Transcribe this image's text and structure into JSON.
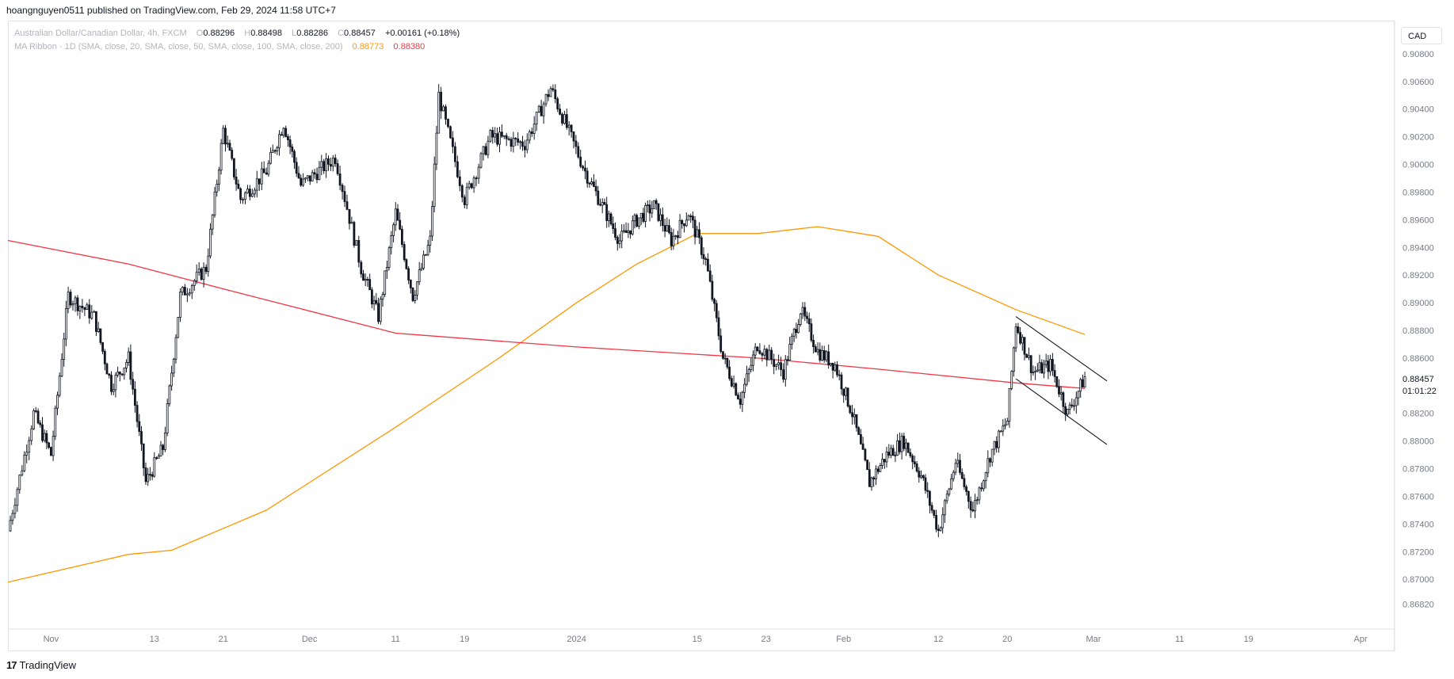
{
  "header": {
    "published_line": "hoangnguyen0511 published on TradingView.com, Feb 29, 2024 11:58 UTC+7"
  },
  "legend": {
    "symbol_line": "Australian Dollar/Canadian Dollar, 4h, FXCM",
    "o_label": "O",
    "o_value": "0.88296",
    "h_label": "H",
    "h_value": "0.88498",
    "l_label": "L",
    "l_value": "0.88286",
    "c_label": "C",
    "c_value": "0.88457",
    "change": "+0.00161 (+0.18%)",
    "ma_line": "MA Ribbon · 1D (SMA, close, 20, SMA, close, 50, SMA, close, 100, SMA, close, 200)",
    "ma_value_1": "0.88773",
    "ma_value_2": "0.88380"
  },
  "currency_button": "CAD",
  "last_price": {
    "value": "0.88457",
    "countdown": "01:01:22"
  },
  "footer": {
    "brand": "TradingView",
    "logo_glyph": "17"
  },
  "colors": {
    "candle": "#131722",
    "ma_orange": "#ff9800",
    "ma_red": "#f23645",
    "grid_border": "#e0e3eb"
  },
  "chart_data": {
    "type": "candlestick",
    "symbol": "Australian Dollar/Canadian Dollar",
    "interval": "4h",
    "ylim": [
      0.8664,
      0.9104
    ],
    "y_ticks": [
      "0.90800",
      "0.90600",
      "0.90400",
      "0.90200",
      "0.90000",
      "0.89800",
      "0.89600",
      "0.89400",
      "0.89200",
      "0.89000",
      "0.88800",
      "0.88600",
      "0.88200",
      "0.88000",
      "0.87800",
      "0.87600",
      "0.87400",
      "0.87200",
      "0.87000",
      "0.86820"
    ],
    "x_ticks": [
      "Nov",
      "13",
      "21",
      "Dec",
      "11",
      "19",
      "2024",
      "15",
      "23",
      "Feb",
      "12",
      "20",
      "Mar",
      "11",
      "19",
      "Apr"
    ],
    "price_path": [
      {
        "x": "Oct 27",
        "y": 0.8735
      },
      {
        "x": "Oct 30",
        "y": 0.882
      },
      {
        "x": "Nov 1",
        "y": 0.879
      },
      {
        "x": "Nov 3",
        "y": 0.8905
      },
      {
        "x": "Nov 6",
        "y": 0.889
      },
      {
        "x": "Nov 8",
        "y": 0.884
      },
      {
        "x": "Nov 10",
        "y": 0.886
      },
      {
        "x": "Nov 12",
        "y": 0.877
      },
      {
        "x": "Nov 14",
        "y": 0.8795
      },
      {
        "x": "Nov 16",
        "y": 0.8905
      },
      {
        "x": "Nov 19",
        "y": 0.8925
      },
      {
        "x": "Nov 21",
        "y": 0.9025
      },
      {
        "x": "Nov 23",
        "y": 0.8975
      },
      {
        "x": "Nov 26",
        "y": 0.8995
      },
      {
        "x": "Nov 28",
        "y": 0.903
      },
      {
        "x": "Nov 30",
        "y": 0.8985
      },
      {
        "x": "Dec 4",
        "y": 0.9005
      },
      {
        "x": "Dec 7",
        "y": 0.8925
      },
      {
        "x": "Dec 9",
        "y": 0.889
      },
      {
        "x": "Dec 11",
        "y": 0.8965
      },
      {
        "x": "Dec 13",
        "y": 0.8905
      },
      {
        "x": "Dec 15",
        "y": 0.8945
      },
      {
        "x": "Dec 16",
        "y": 0.905
      },
      {
        "x": "Dec 19",
        "y": 0.8975
      },
      {
        "x": "Dec 22",
        "y": 0.902
      },
      {
        "x": "Dec 26",
        "y": 0.9015
      },
      {
        "x": "Dec 29",
        "y": 0.9055
      },
      {
        "x": "Jan 2",
        "y": 0.8995
      },
      {
        "x": "Jan 4",
        "y": 0.897
      },
      {
        "x": "Jan 6",
        "y": 0.8945
      },
      {
        "x": "Jan 8",
        "y": 0.896
      },
      {
        "x": "Jan 10",
        "y": 0.897
      },
      {
        "x": "Jan 12",
        "y": 0.8945
      },
      {
        "x": "Jan 14",
        "y": 0.8965
      },
      {
        "x": "Jan 16",
        "y": 0.893
      },
      {
        "x": "Jan 18",
        "y": 0.886
      },
      {
        "x": "Jan 20",
        "y": 0.883
      },
      {
        "x": "Jan 22",
        "y": 0.887
      },
      {
        "x": "Jan 25",
        "y": 0.885
      },
      {
        "x": "Jan 27",
        "y": 0.8895
      },
      {
        "x": "Jan 29",
        "y": 0.8865
      },
      {
        "x": "Jan 31",
        "y": 0.8855
      },
      {
        "x": "Feb 2",
        "y": 0.882
      },
      {
        "x": "Feb 4",
        "y": 0.877
      },
      {
        "x": "Feb 6",
        "y": 0.879
      },
      {
        "x": "Feb 8",
        "y": 0.88
      },
      {
        "x": "Feb 10",
        "y": 0.8775
      },
      {
        "x": "Feb 12",
        "y": 0.8735
      },
      {
        "x": "Feb 14",
        "y": 0.8785
      },
      {
        "x": "Feb 16",
        "y": 0.875
      },
      {
        "x": "Feb 18",
        "y": 0.879
      },
      {
        "x": "Feb 20",
        "y": 0.8815
      },
      {
        "x": "Feb 21",
        "y": 0.8885
      },
      {
        "x": "Feb 23",
        "y": 0.885
      },
      {
        "x": "Feb 25",
        "y": 0.8855
      },
      {
        "x": "Feb 27",
        "y": 0.882
      },
      {
        "x": "Feb 29",
        "y": 0.8846
      }
    ],
    "series": [
      {
        "name": "MA 1D (0.88773)",
        "color": "#ff9800",
        "points": [
          {
            "x": "Oct 27",
            "y": 0.8698
          },
          {
            "x": "Nov 10",
            "y": 0.8718
          },
          {
            "x": "Nov 15",
            "y": 0.8721
          },
          {
            "x": "Nov 26",
            "y": 0.875
          },
          {
            "x": "Dec 11",
            "y": 0.881
          },
          {
            "x": "Dec 23",
            "y": 0.886
          },
          {
            "x": "Jan 1",
            "y": 0.89
          },
          {
            "x": "Jan 8",
            "y": 0.8928
          },
          {
            "x": "Jan 15",
            "y": 0.895
          },
          {
            "x": "Jan 22",
            "y": 0.895
          },
          {
            "x": "Jan 29",
            "y": 0.8955
          },
          {
            "x": "Feb 5",
            "y": 0.8948
          },
          {
            "x": "Feb 12",
            "y": 0.892
          },
          {
            "x": "Feb 21",
            "y": 0.8895
          },
          {
            "x": "Feb 29",
            "y": 0.8877
          }
        ]
      },
      {
        "name": "MA 1D (0.88380)",
        "color": "#f23645",
        "points": [
          {
            "x": "Oct 27",
            "y": 0.8945
          },
          {
            "x": "Nov 10",
            "y": 0.8928
          },
          {
            "x": "Nov 21",
            "y": 0.891
          },
          {
            "x": "Dec 11",
            "y": 0.8878
          },
          {
            "x": "Jan 1",
            "y": 0.8868
          },
          {
            "x": "Jan 22",
            "y": 0.886
          },
          {
            "x": "Feb 5",
            "y": 0.8852
          },
          {
            "x": "Feb 21",
            "y": 0.8842
          },
          {
            "x": "Feb 29",
            "y": 0.8838
          }
        ]
      }
    ],
    "drawings": {
      "channel_upper": [
        {
          "x": "Feb 21",
          "y": 0.889
        },
        {
          "x": "Mar 1",
          "y": 0.8843
        }
      ],
      "channel_lower": [
        {
          "x": "Feb 21",
          "y": 0.8845
        },
        {
          "x": "Mar 1",
          "y": 0.8797
        }
      ]
    }
  }
}
